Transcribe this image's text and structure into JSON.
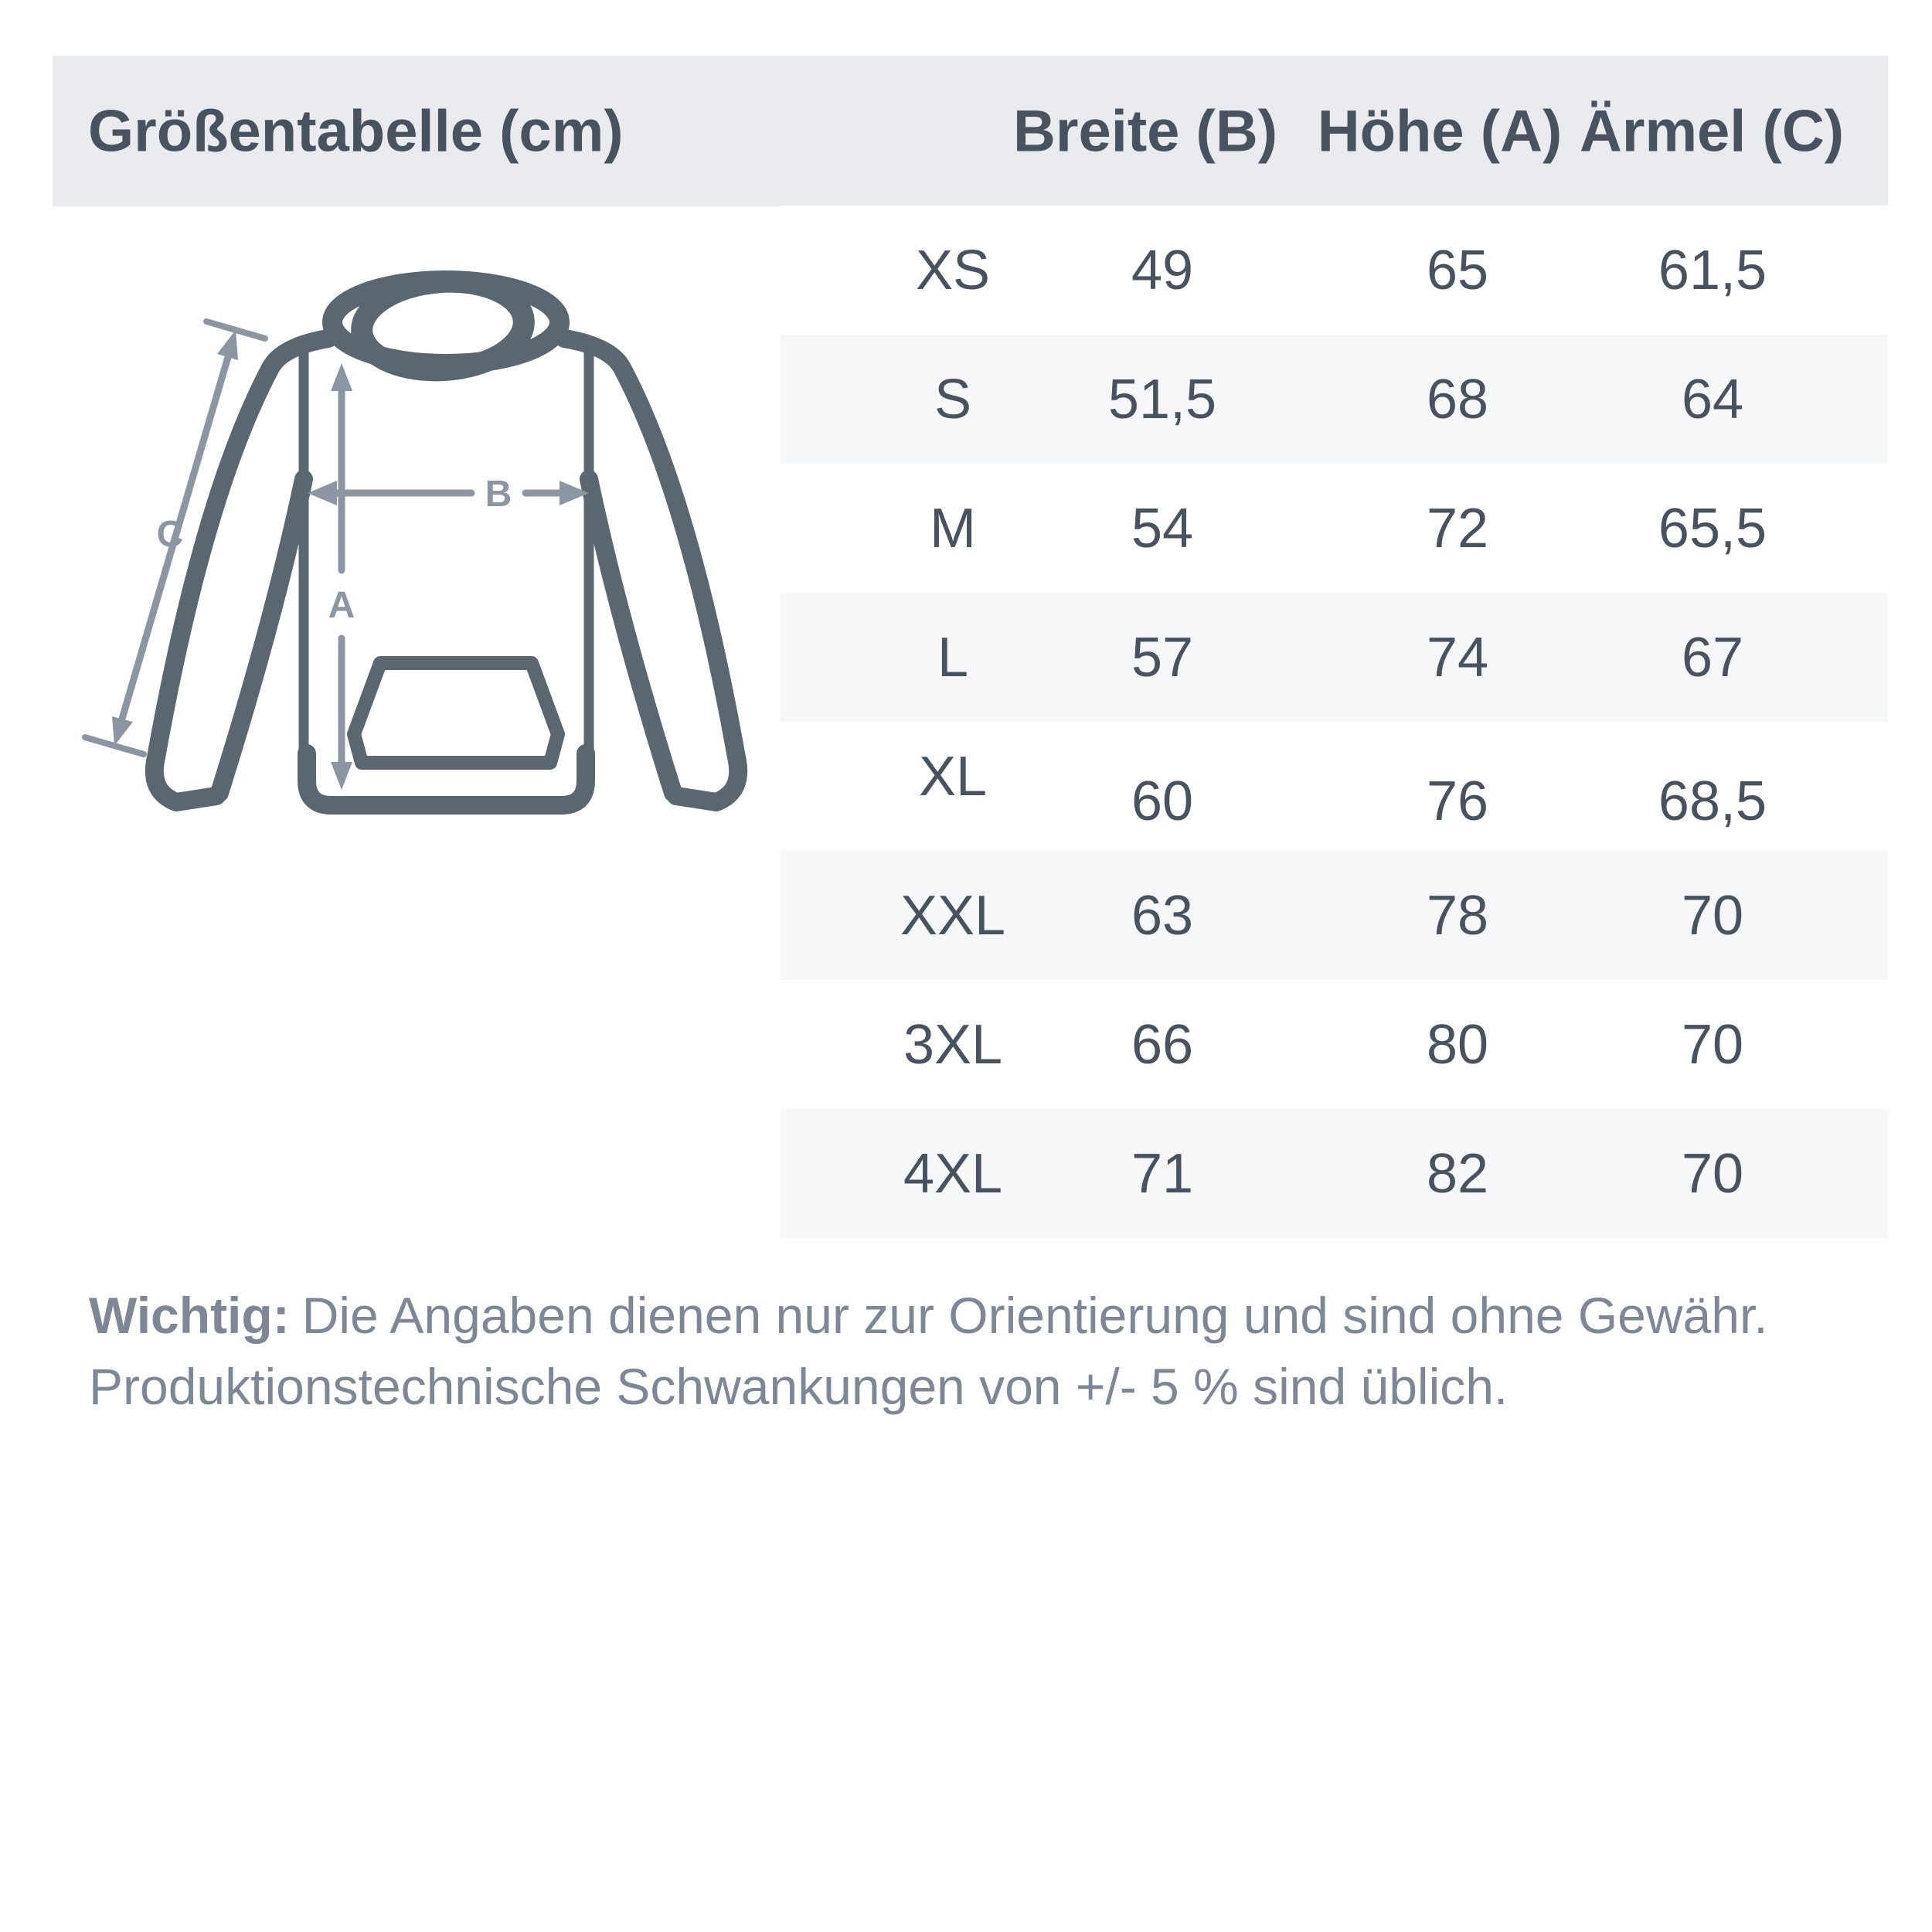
{
  "header": {
    "title": "Größentabelle (cm)",
    "columns": [
      "Breite (B)",
      "Höhe (A)",
      "Ärmel (C)"
    ]
  },
  "table": {
    "rows": [
      {
        "size": "XS",
        "values": [
          "49",
          "65",
          "61,5"
        ]
      },
      {
        "size": "S",
        "values": [
          "51,5",
          "68",
          "64"
        ]
      },
      {
        "size": "M",
        "values": [
          "54",
          "72",
          "65,5"
        ]
      },
      {
        "size": "L",
        "values": [
          "57",
          "74",
          "67"
        ]
      },
      {
        "size": "XL",
        "values": [
          "60",
          "76",
          "68,5"
        ]
      },
      {
        "size": "XXL",
        "values": [
          "63",
          "78",
          "70"
        ]
      },
      {
        "size": "3XL",
        "values": [
          "66",
          "80",
          "70"
        ]
      },
      {
        "size": "4XL",
        "values": [
          "71",
          "82",
          "70"
        ]
      }
    ]
  },
  "diagram": {
    "labels": {
      "height": "A",
      "width": "B",
      "sleeve": "C"
    }
  },
  "note": {
    "emphasis": "Wichtig:",
    "line1": "Die Angaben dienen nur zur Orientierung und sind ohne Gewähr.",
    "line2": "Produktionstechnische Schwankungen von +/- 5 % sind üblich."
  },
  "colors": {
    "ink": "#49525f",
    "note_text": "#7e8796",
    "header_bg": "#e9ebee",
    "row_alt_bg": "#f6f7f9",
    "hoodie_outline": "#5a6771",
    "arrow": "#8c96a3",
    "background": "#ffffff"
  }
}
